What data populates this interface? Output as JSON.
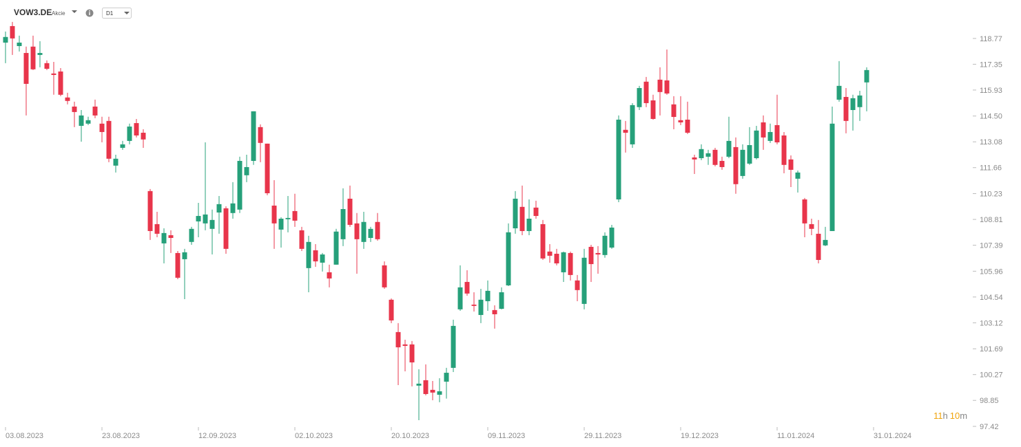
{
  "chart_data": {
    "type": "candlestick",
    "title": "VOW3.DE",
    "subtitle": "Akcie",
    "interval": "D1",
    "timer": [
      "11",
      "h",
      "10",
      "m"
    ],
    "up_color": "#26a07a",
    "down_color": "#e8354b",
    "xlim": [
      -0.8,
      140.2
    ],
    "ylim": [
      97.42,
      119.75
    ],
    "xticks": [
      {
        "value": 0,
        "label": "03.08.2023"
      },
      {
        "value": 14,
        "label": "23.08.2023"
      },
      {
        "value": 28,
        "label": "12.09.2023"
      },
      {
        "value": 42,
        "label": "02.10.2023"
      },
      {
        "value": 56,
        "label": "20.10.2023"
      },
      {
        "value": 70,
        "label": "09.11.2023"
      },
      {
        "value": 84,
        "label": "29.11.2023"
      },
      {
        "value": 98,
        "label": "19.12.2023"
      },
      {
        "value": 112,
        "label": "11.01.2024"
      },
      {
        "value": 126,
        "label": "31.01.2024"
      }
    ],
    "yticks": [
      118.77,
      117.35,
      115.93,
      {
        "value": 114.5,
        "label": "114.50"
      },
      113.08,
      111.66,
      110.23,
      108.81,
      107.39,
      105.96,
      104.54,
      103.12,
      101.69,
      100.27,
      98.85,
      97.42
    ],
    "open": [
      118.54,
      119.45,
      118.35,
      117.97,
      118.32,
      117.86,
      117.41,
      116.84,
      116.95,
      115.52,
      115.02,
      113.96,
      114.08,
      115.02,
      114.08,
      114.23,
      111.77,
      112.75,
      113.13,
      114.11,
      113.58,
      110.37,
      108.55,
      107.49,
      107.94,
      106.96,
      106.62,
      107.57,
      108.7,
      108.59,
      108.29,
      109.19,
      109.42,
      109.16,
      109.35,
      111.24,
      112.03,
      113.89,
      112.98,
      109.57,
      108.25,
      108.82,
      109.27,
      108.21,
      106.13,
      107.11,
      106.43,
      105.9,
      106.32,
      107.72,
      109.95,
      108.59,
      107.57,
      107.79,
      108.67,
      106.28,
      104.39,
      102.61,
      101.93,
      101.93,
      99.66,
      99.96,
      99.43,
      99.16,
      99.88,
      100.64,
      103.86,
      105.37,
      104.12,
      103.55,
      104.31,
      103.82,
      103.89,
      105.18,
      108.32,
      109.5,
      108.17,
      109.46,
      108.55,
      107.04,
      106.92,
      105.9,
      106.96,
      105.45,
      104.16,
      107.3,
      106.96,
      106.85,
      107.26,
      109.91,
      113.74,
      112.94,
      114.99,
      116.39,
      115.36,
      116.5,
      116.46,
      115.14,
      114.27,
      114.3,
      112.22,
      112.18,
      112.26,
      112.64,
      112.03,
      112.26,
      112.79,
      111.2,
      111.88,
      112.18,
      114.15,
      113.13,
      114.0,
      113.43,
      112.11,
      111.05,
      109.91,
      108.55,
      108.02,
      107.38,
      108.17,
      115.4,
      115.55,
      114.83,
      114.99,
      116.35
    ],
    "high": [
      119.15,
      119.68,
      118.92,
      118.32,
      118.92,
      118.62,
      117.56,
      117.48,
      117.14,
      115.78,
      115.29,
      114.83,
      114.46,
      115.4,
      114.46,
      114.46,
      112.37,
      113.13,
      114.08,
      114.34,
      113.77,
      110.48,
      109.23,
      108.32,
      108.21,
      107.07,
      107.19,
      108.4,
      109.72,
      113.05,
      109.35,
      110.1,
      109.53,
      110.86,
      112.26,
      112.37,
      114.76,
      114.04,
      112.98,
      110.97,
      108.93,
      110.1,
      110.22,
      108.4,
      107.91,
      107.45,
      106.96,
      106.32,
      108.29,
      110.52,
      110.67,
      109.16,
      109.23,
      108.4,
      109.16,
      106.5,
      104.46,
      103.1,
      102.19,
      102.12,
      100.56,
      100.83,
      99.92,
      100.07,
      100.64,
      103.29,
      106.28,
      106.01,
      104.8,
      104.99,
      105.45,
      104.08,
      105.07,
      108.59,
      110.37,
      110.67,
      109.91,
      109.84,
      108.78,
      107.45,
      107.19,
      107.04,
      107.04,
      105.75,
      107.19,
      107.41,
      107.34,
      108.1,
      108.51,
      114.53,
      114.23,
      115.21,
      116.16,
      116.65,
      115.67,
      117.18,
      118.16,
      115.59,
      115.59,
      115.29,
      112.37,
      112.94,
      112.64,
      112.75,
      112.26,
      114.46,
      113.32,
      112.94,
      113.89,
      113.96,
      114.53,
      114.08,
      115.67,
      113.62,
      112.33,
      111.5,
      109.99,
      108.85,
      108.78,
      108.4,
      115.02,
      117.52,
      116.04,
      115.67,
      115.89,
      117.18
    ],
    "low": [
      117.41,
      117.86,
      118.05,
      114.53,
      117.03,
      117.18,
      117.03,
      115.67,
      115.59,
      115.14,
      113.89,
      113.09,
      114.0,
      114.38,
      113.05,
      111.96,
      111.39,
      112.64,
      112.94,
      113.32,
      112.75,
      107.68,
      107.83,
      106.39,
      106.96,
      105.52,
      104.42,
      107.41,
      107.83,
      108.21,
      106.88,
      108.02,
      106.92,
      108.85,
      109.16,
      110.86,
      111.81,
      111.96,
      110.14,
      107.19,
      107.26,
      108.1,
      108.4,
      107.07,
      104.8,
      106.2,
      105.94,
      105.07,
      106.32,
      107.34,
      108.4,
      105.82,
      107.19,
      107.57,
      107.64,
      104.99,
      103.1,
      99.69,
      100.45,
      99.62,
      97.76,
      99.13,
      98.86,
      98.75,
      98.95,
      100.41,
      103.78,
      104.61,
      103.74,
      103.1,
      103.78,
      102.8,
      103.86,
      105.14,
      108.02,
      107.94,
      107.94,
      108.85,
      106.58,
      106.43,
      106.28,
      105.37,
      105.45,
      104.31,
      103.86,
      105.37,
      105.82,
      106.7,
      107.19,
      109.76,
      112.49,
      112.75,
      114.83,
      114.99,
      114.3,
      114.53,
      115.67,
      113.77,
      114.0,
      113.51,
      111.31,
      112.07,
      111.81,
      111.73,
      111.54,
      112.18,
      110.22,
      111.05,
      111.81,
      112.11,
      112.64,
      113.02,
      112.94,
      111.35,
      110.59,
      110.29,
      107.83,
      107.94,
      106.39,
      107.34,
      108.17,
      115.29,
      113.55,
      113.7,
      114.23,
      114.76
    ],
    "close": [
      118.85,
      118.77,
      118.54,
      116.27,
      117.07,
      117.97,
      117.1,
      116.76,
      115.67,
      115.33,
      114.72,
      114.53,
      114.27,
      114.53,
      113.62,
      112.15,
      112.15,
      112.94,
      113.92,
      113.43,
      113.21,
      108.17,
      108.02,
      108.06,
      107.79,
      105.6,
      107.0,
      108.29,
      109.0,
      109.08,
      108.78,
      109.65,
      107.19,
      109.69,
      112.03,
      111.69,
      114.76,
      113.02,
      110.25,
      108.59,
      108.85,
      108.89,
      108.74,
      107.19,
      107.57,
      106.5,
      106.88,
      105.56,
      108.14,
      109.38,
      108.51,
      107.72,
      108.67,
      108.29,
      107.72,
      105.07,
      103.25,
      101.77,
      101.85,
      100.94,
      99.77,
      99.2,
      99.28,
      99.35,
      100.37,
      102.95,
      105.07,
      104.73,
      104.05,
      104.39,
      104.88,
      103.59,
      104.8,
      108.1,
      109.95,
      108.17,
      108.85,
      109.0,
      106.66,
      106.81,
      106.39,
      107.0,
      105.75,
      104.92,
      106.7,
      106.35,
      106.88,
      107.91,
      108.36,
      114.3,
      113.58,
      115.1,
      116.04,
      115.21,
      114.34,
      115.82,
      115.74,
      114.45,
      114.15,
      113.58,
      112.11,
      112.68,
      112.45,
      111.81,
      111.69,
      113.13,
      110.75,
      112.64,
      112.9,
      113.7,
      113.32,
      113.62,
      113.05,
      111.81,
      111.54,
      111.39,
      108.59,
      108.29,
      106.58,
      107.68,
      114.08,
      116.16,
      114.23,
      115.48,
      115.63,
      117.03
    ]
  }
}
